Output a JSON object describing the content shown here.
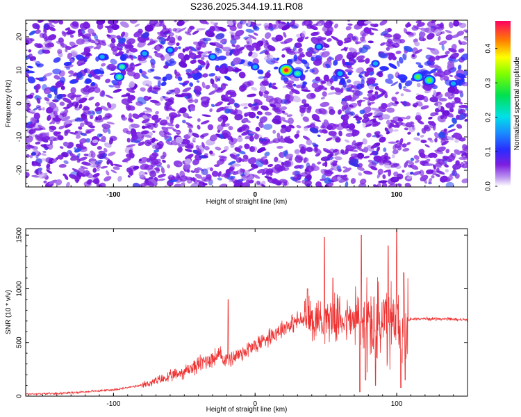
{
  "title": "S236.2025.344.19.11.R08",
  "chart_data": [
    {
      "type": "heatmap",
      "title": "S236.2025.344.19.11.R08",
      "xlabel": "Height of straight line (km)",
      "ylabel": "Frequency (Hz)",
      "xlim": [
        -162,
        150
      ],
      "ylim": [
        -25,
        25
      ],
      "xticks": [
        -100,
        0,
        100
      ],
      "yticks": [
        -20,
        -10,
        0,
        10,
        20
      ],
      "colorbar": {
        "label": "Normalized spectral amplitude",
        "range": [
          0,
          0.48
        ],
        "ticks": [
          0.0,
          0.1,
          0.2,
          0.3,
          0.4
        ]
      },
      "hotspots": [
        {
          "x": -96,
          "y": 8,
          "amp": 0.2
        },
        {
          "x": -94,
          "y": 11,
          "amp": 0.15
        },
        {
          "x": -108,
          "y": 14,
          "amp": 0.1
        },
        {
          "x": -78,
          "y": 15,
          "amp": 0.1
        },
        {
          "x": -60,
          "y": 16,
          "amp": 0.12
        },
        {
          "x": -30,
          "y": 14,
          "amp": 0.12
        },
        {
          "x": 0,
          "y": 11,
          "amp": 0.1
        },
        {
          "x": 22,
          "y": 10,
          "amp": 0.45
        },
        {
          "x": 30,
          "y": 9,
          "amp": 0.2
        },
        {
          "x": 45,
          "y": 17,
          "amp": 0.1
        },
        {
          "x": 60,
          "y": 9,
          "amp": 0.12
        },
        {
          "x": 85,
          "y": 12,
          "amp": 0.1
        },
        {
          "x": 115,
          "y": 8,
          "amp": 0.25
        },
        {
          "x": 123,
          "y": 7,
          "amp": 0.3
        },
        {
          "x": 140,
          "y": 6,
          "amp": 0.1
        }
      ]
    },
    {
      "type": "line",
      "xlabel": "Height of straight line (km)",
      "ylabel": "SNR (10 * v/v)",
      "xlim": [
        -162,
        150
      ],
      "ylim": [
        0,
        1560
      ],
      "xticks": [
        -100,
        0,
        100
      ],
      "yticks": [
        0,
        500,
        1000,
        1500
      ],
      "series": [
        {
          "name": "SNR",
          "color": "#ee3333",
          "x": [
            -162,
            -140,
            -120,
            -100,
            -80,
            -60,
            -50,
            -40,
            -35,
            -30,
            -25,
            -20,
            -10,
            0,
            10,
            20,
            30,
            40,
            50,
            60,
            70,
            75,
            80,
            85,
            90,
            95,
            100,
            105,
            110,
            130,
            150
          ],
          "values": [
            20,
            25,
            40,
            60,
            100,
            180,
            230,
            290,
            330,
            350,
            380,
            330,
            400,
            470,
            560,
            640,
            700,
            720,
            730,
            720,
            700,
            690,
            680,
            670,
            660,
            650,
            640,
            680,
            720,
            720,
            710
          ],
          "peaks": [
            {
              "x": -19,
              "y": 900
            },
            {
              "x": 37,
              "y": 1000
            },
            {
              "x": 49,
              "y": 1480
            },
            {
              "x": 55,
              "y": 1100
            },
            {
              "x": 75,
              "y": 1500
            },
            {
              "x": 85,
              "y": 1380
            },
            {
              "x": 94,
              "y": 1400
            },
            {
              "x": 100,
              "y": 1560
            },
            {
              "x": 105,
              "y": 1150
            }
          ],
          "troughs": [
            {
              "x": 74,
              "y": 40
            },
            {
              "x": 78,
              "y": 150
            },
            {
              "x": 85,
              "y": 100
            },
            {
              "x": 103,
              "y": 80
            },
            {
              "x": 106,
              "y": 150
            }
          ]
        }
      ]
    }
  ]
}
